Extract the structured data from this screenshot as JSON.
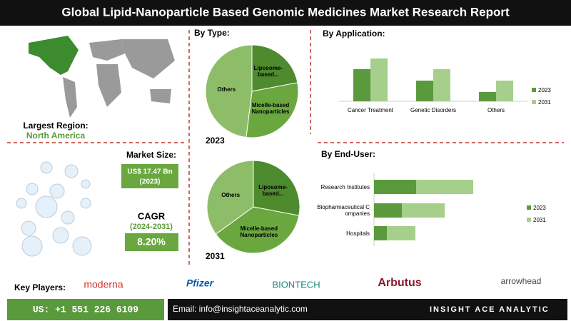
{
  "title": "Global Lipid-Nanoparticle Based Genomic Medicines Market Research Report",
  "region": {
    "label": "Largest Region:",
    "value": "North America"
  },
  "market_size": {
    "label": "Market Size:",
    "value": "US$ 17.47 Bn",
    "year": "(2023)"
  },
  "cagr": {
    "label": "CAGR",
    "period": "(2024-2031)",
    "value": "8.20%"
  },
  "key_players": {
    "label": "Key Players:",
    "names": [
      "moderna",
      "Pfizer",
      "BIONTECH",
      "Arbutus",
      "arrowhead"
    ]
  },
  "footer": {
    "phone": "US: +1 551 226 6109",
    "email": "Email: info@insightaceanalytic.com",
    "brand": "INSIGHT ACE ANALYTIC"
  },
  "chart_data": [
    {
      "type": "pie",
      "title": "By Type:",
      "caption": "2023",
      "categories": [
        "Liposome-based...",
        "Micelle-based Nanoparticles",
        "Others"
      ],
      "values": [
        22,
        30,
        48
      ],
      "colors": [
        "#4e8a2e",
        "#6aa83f",
        "#8dbd68"
      ]
    },
    {
      "type": "pie",
      "caption": "2031",
      "categories": [
        "Liposome-based...",
        "Micelle-based Nanoparticles",
        "Others"
      ],
      "values": [
        28,
        37,
        35
      ],
      "colors": [
        "#4e8a2e",
        "#6aa83f",
        "#8dbd68"
      ]
    },
    {
      "type": "bar",
      "title": "By Application:",
      "categories": [
        "Cancer Treatment",
        "Genetic Disorders",
        "Others"
      ],
      "series": [
        {
          "name": "2023",
          "color": "#5a9a3c",
          "values": [
            45,
            29,
            13
          ]
        },
        {
          "name": "2031",
          "color": "#a6cf8c",
          "values": [
            60,
            45,
            29
          ]
        }
      ]
    },
    {
      "type": "hstack",
      "title": "By End-User:",
      "categories": [
        "Research Institutes",
        "Biopharmaceutical Companies",
        "Hospitals"
      ],
      "series": [
        {
          "name": "2023",
          "color": "#5a9a3c",
          "values": [
            59,
            39,
            18
          ]
        },
        {
          "name": "2031",
          "color": "#a6cf8c",
          "values": [
            80,
            60,
            40
          ]
        }
      ]
    }
  ]
}
